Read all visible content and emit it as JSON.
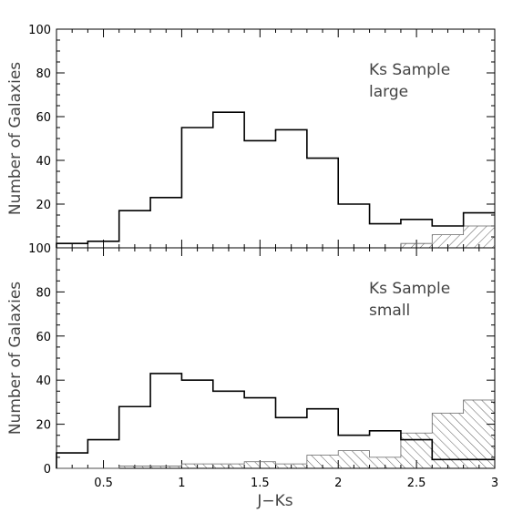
{
  "chart_data": [
    {
      "type": "histogram",
      "annotation": [
        "Ks Sample",
        "large"
      ],
      "ylabel": "Number of Galaxies",
      "xlabel": "",
      "xlim": [
        0.2,
        3.0
      ],
      "ylim": [
        0,
        100
      ],
      "x_ticks": [
        0.5,
        1,
        1.5,
        2,
        2.5,
        3
      ],
      "y_tick_labels": [
        "20",
        "40",
        "60",
        "80",
        "100"
      ],
      "bin_edges": [
        0.2,
        0.4,
        0.6,
        0.8,
        1.0,
        1.2,
        1.4,
        1.6,
        1.8,
        2.0,
        2.2,
        2.4,
        2.6,
        2.8,
        3.0
      ],
      "series": [
        {
          "style": "step-outline",
          "values": [
            2,
            3,
            17,
            23,
            55,
            62,
            49,
            54,
            41,
            20,
            11,
            13,
            10,
            16
          ]
        },
        {
          "style": "hatched",
          "values": [
            0,
            0,
            0,
            0,
            0,
            0,
            0,
            0,
            0,
            0,
            0,
            2,
            6,
            10
          ]
        }
      ]
    },
    {
      "type": "histogram",
      "annotation": [
        "Ks Sample",
        "small"
      ],
      "ylabel": "Number of Galaxies",
      "xlabel": "J−Ks",
      "xlim": [
        0.2,
        3.0
      ],
      "ylim": [
        0,
        100
      ],
      "x_ticks": [
        0.5,
        1,
        1.5,
        2,
        2.5,
        3
      ],
      "x_tick_labels": [
        "0.5",
        "1",
        "1.5",
        "2",
        "2.5",
        "3"
      ],
      "y_tick_labels": [
        "0",
        "20",
        "40",
        "60",
        "80",
        "100"
      ],
      "bin_edges": [
        0.2,
        0.4,
        0.6,
        0.8,
        1.0,
        1.2,
        1.4,
        1.6,
        1.8,
        2.0,
        2.2,
        2.4,
        2.6,
        2.8,
        3.0
      ],
      "series": [
        {
          "style": "step-outline",
          "values": [
            7,
            13,
            28,
            43,
            40,
            35,
            32,
            23,
            27,
            15,
            17,
            13,
            4,
            4
          ]
        },
        {
          "style": "hatched",
          "values": [
            0,
            0,
            1,
            1,
            2,
            2,
            3,
            2,
            6,
            8,
            5,
            16,
            25,
            31
          ]
        }
      ]
    }
  ]
}
